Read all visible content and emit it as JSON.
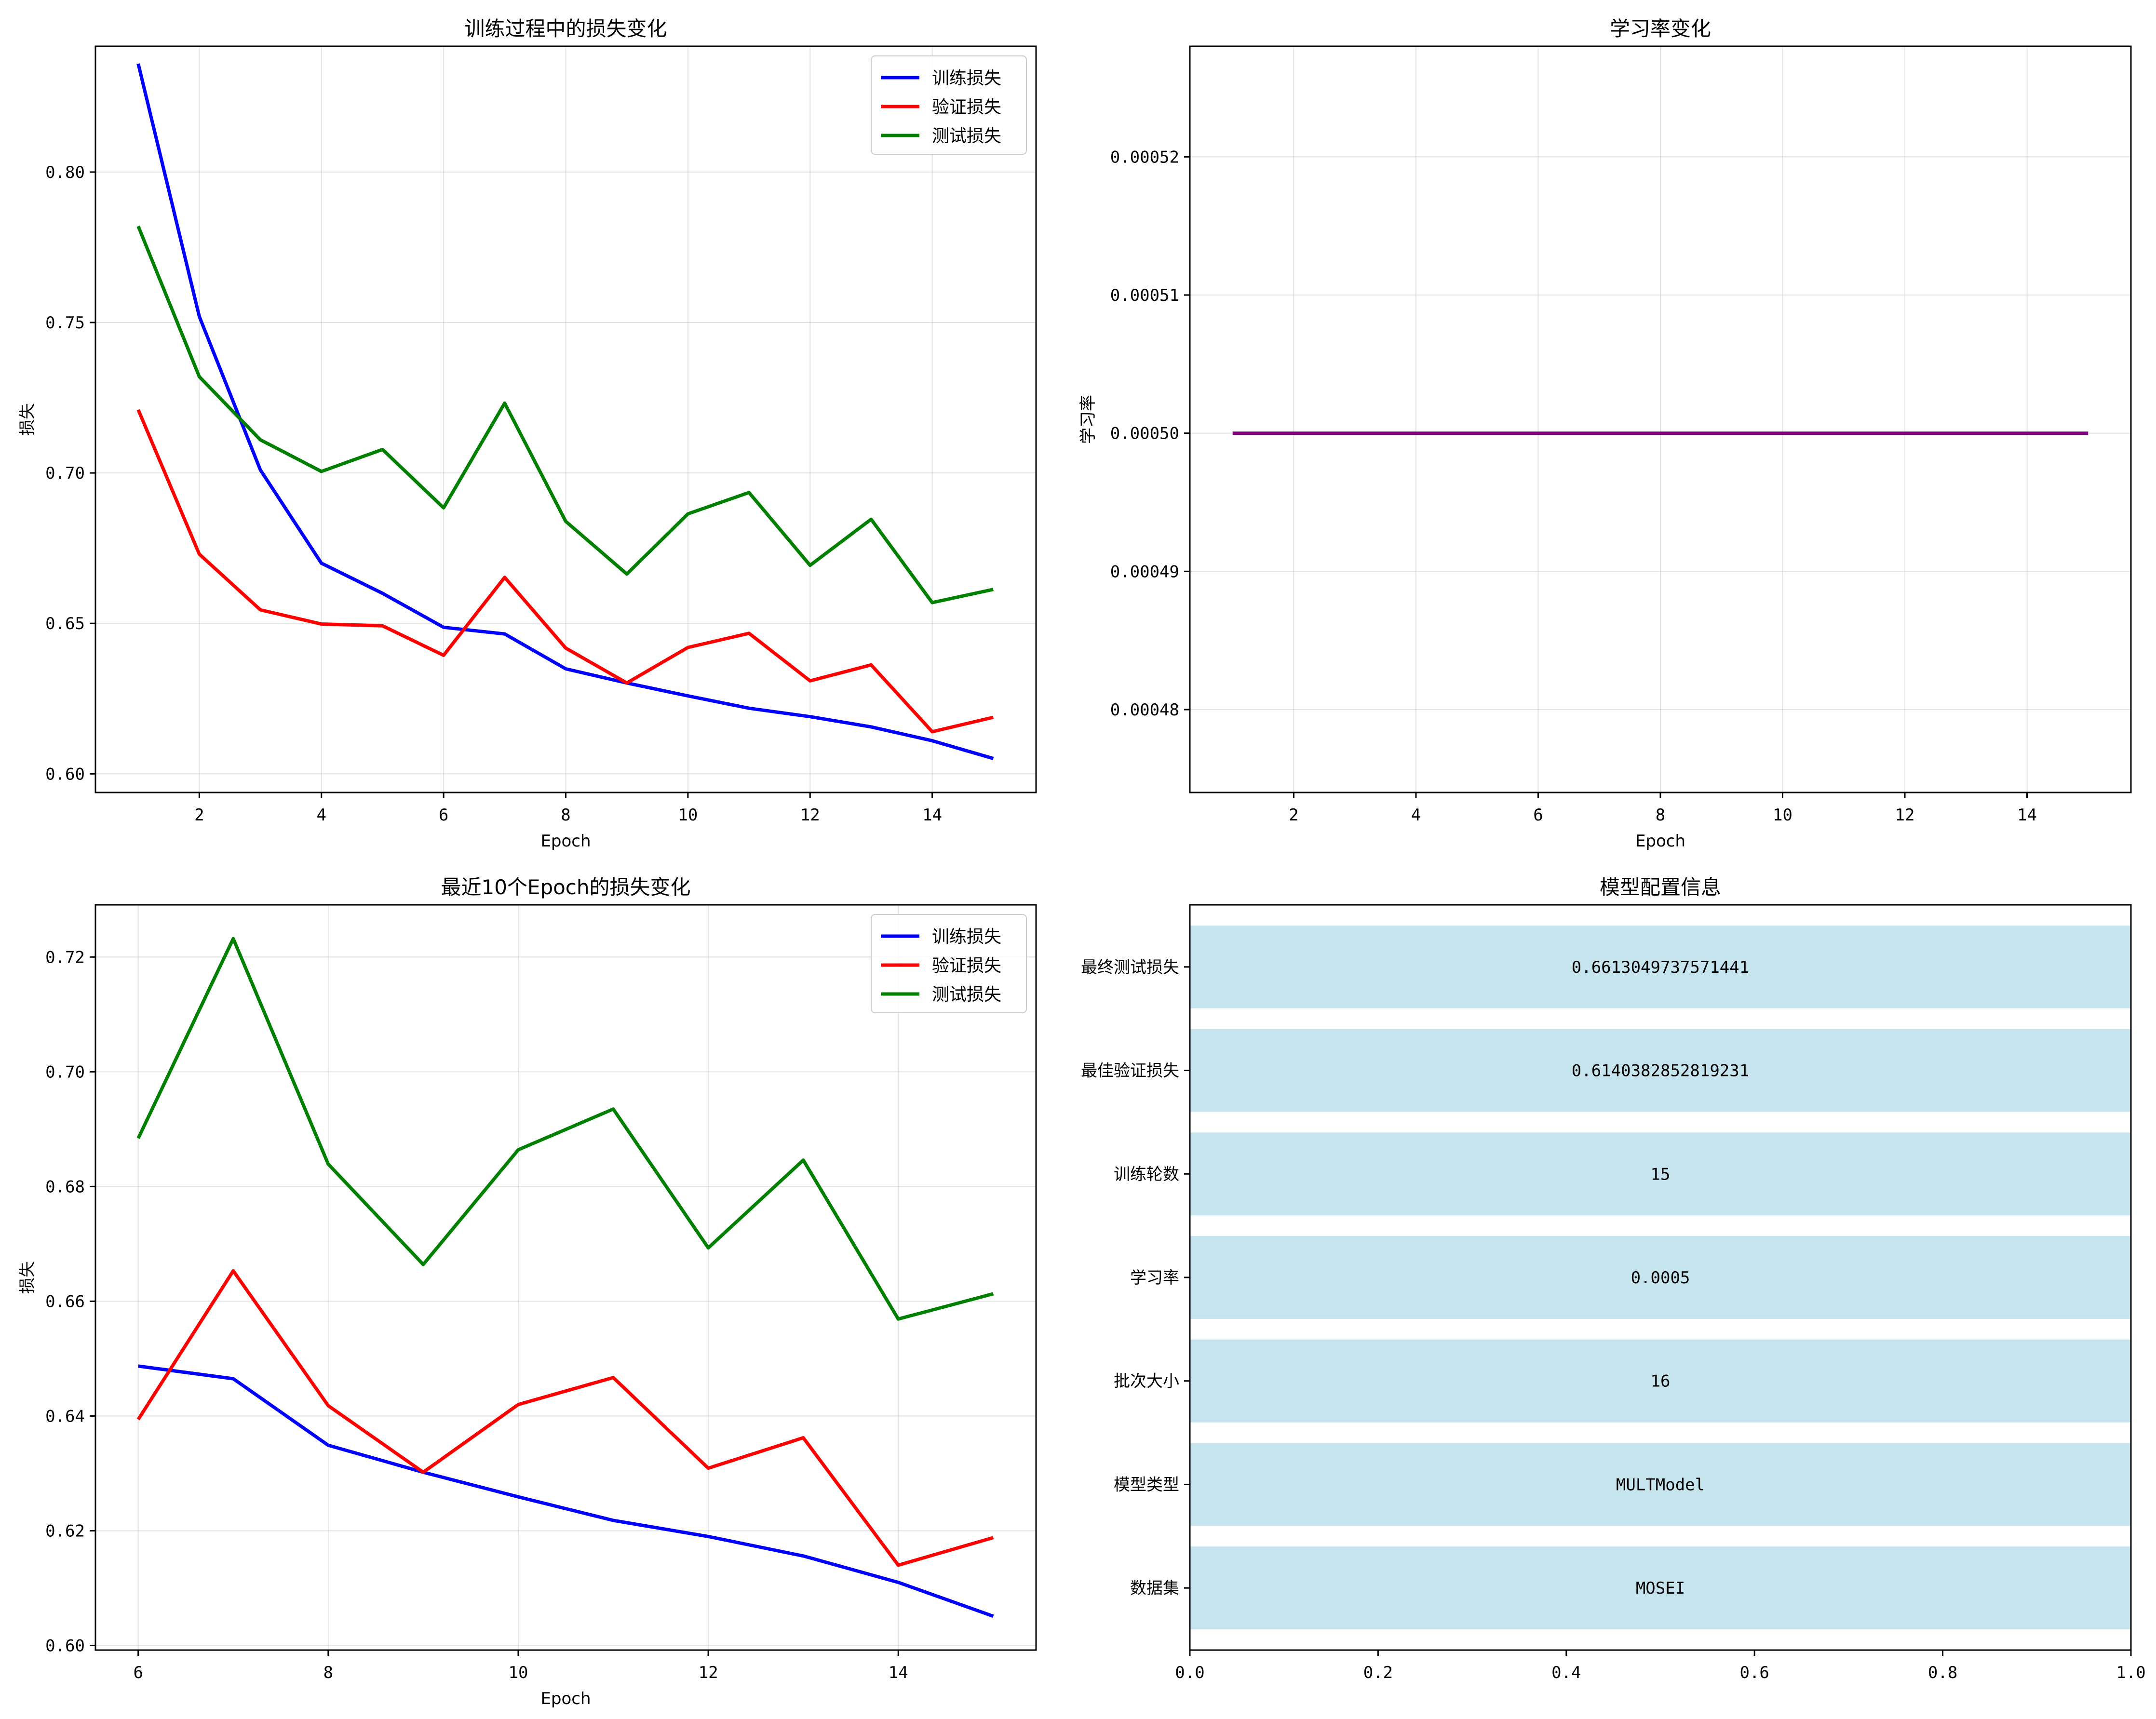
{
  "chart_data": [
    {
      "type": "line",
      "title": "训练过程中的损失变化",
      "xlabel": "Epoch",
      "ylabel": "损失",
      "xlim": [
        0.3,
        15.7
      ],
      "ylim": [
        0.5938,
        0.8418
      ],
      "xticks": [
        2,
        4,
        6,
        8,
        10,
        12,
        14
      ],
      "yticks": [
        0.6,
        0.65,
        0.7,
        0.75,
        0.8
      ],
      "grid": true,
      "legend": "top-right",
      "x": [
        1,
        2,
        3,
        4,
        5,
        6,
        7,
        8,
        9,
        10,
        11,
        12,
        13,
        14,
        15
      ],
      "series": [
        {
          "name": "训练损失",
          "color": "#0000ff",
          "values": [
            0.836,
            0.752,
            0.701,
            0.67,
            0.66,
            0.6487,
            0.6465,
            0.6349,
            0.6302,
            0.6259,
            0.6218,
            0.619,
            0.6156,
            0.611,
            0.6051
          ]
        },
        {
          "name": "验证损失",
          "color": "#ff0000",
          "values": [
            0.721,
            0.673,
            0.6545,
            0.6498,
            0.6492,
            0.6394,
            0.6653,
            0.6418,
            0.6302,
            0.642,
            0.6467,
            0.6309,
            0.6362,
            0.614,
            0.6188
          ]
        },
        {
          "name": "测试损失",
          "color": "#008000",
          "values": [
            0.782,
            0.732,
            0.711,
            0.7005,
            0.7078,
            0.6884,
            0.7232,
            0.6839,
            0.6664,
            0.6864,
            0.6935,
            0.6693,
            0.6846,
            0.6569,
            0.6613
          ]
        }
      ]
    },
    {
      "type": "line",
      "title": "学习率变化",
      "xlabel": "Epoch",
      "ylabel": "学习率",
      "xlim": [
        0.3,
        15.7
      ],
      "ylim": [
        0.000474,
        0.000528
      ],
      "xticks": [
        2,
        4,
        6,
        8,
        10,
        12,
        14
      ],
      "yticks": [
        0.00048,
        0.00049,
        0.0005,
        0.00051,
        0.00052
      ],
      "ytick_labels": [
        "0.00048",
        "0.00049",
        "0.00050",
        "0.00051",
        "0.00052"
      ],
      "grid": true,
      "x": [
        1,
        2,
        3,
        4,
        5,
        6,
        7,
        8,
        9,
        10,
        11,
        12,
        13,
        14,
        15
      ],
      "series": [
        {
          "name": "学习率",
          "color": "#800080",
          "values": [
            0.0005,
            0.0005,
            0.0005,
            0.0005,
            0.0005,
            0.0005,
            0.0005,
            0.0005,
            0.0005,
            0.0005,
            0.0005,
            0.0005,
            0.0005,
            0.0005,
            0.0005
          ]
        }
      ]
    },
    {
      "type": "line",
      "title": "最近10个Epoch的损失变化",
      "xlabel": "Epoch",
      "ylabel": "损失",
      "xlim": [
        5.55,
        15.45
      ],
      "ylim": [
        0.5992,
        0.7291
      ],
      "xticks": [
        6,
        8,
        10,
        12,
        14
      ],
      "yticks": [
        0.6,
        0.62,
        0.64,
        0.66,
        0.68,
        0.7,
        0.72
      ],
      "grid": true,
      "legend": "top-right",
      "x": [
        6,
        7,
        8,
        9,
        10,
        11,
        12,
        13,
        14,
        15
      ],
      "series": [
        {
          "name": "训练损失",
          "color": "#0000ff",
          "values": [
            0.6487,
            0.6465,
            0.6349,
            0.6302,
            0.6259,
            0.6218,
            0.619,
            0.6156,
            0.611,
            0.6051
          ]
        },
        {
          "name": "验证损失",
          "color": "#ff0000",
          "values": [
            0.6394,
            0.6653,
            0.6418,
            0.6302,
            0.642,
            0.6467,
            0.6309,
            0.6362,
            0.614,
            0.6188
          ]
        },
        {
          "name": "测试损失",
          "color": "#008000",
          "values": [
            0.6884,
            0.7232,
            0.6839,
            0.6664,
            0.6864,
            0.6935,
            0.6693,
            0.6846,
            0.6569,
            0.6613
          ]
        }
      ]
    },
    {
      "type": "bar",
      "orientation": "horizontal",
      "title": "模型配置信息",
      "xlim": [
        0,
        1
      ],
      "xticks": [
        0.0,
        0.2,
        0.4,
        0.6,
        0.8,
        1.0
      ],
      "xtick_labels": [
        "0.0",
        "0.2",
        "0.4",
        "0.6",
        "0.8",
        "1.0"
      ],
      "bar_color": "#add8e6",
      "categories": [
        "最终测试损失",
        "最佳验证损失",
        "训练轮数",
        "学习率",
        "批次大小",
        "模型类型",
        "数据集"
      ],
      "values": [
        1,
        1,
        1,
        1,
        1,
        1,
        1
      ],
      "labels": [
        "0.6613049737571441",
        "0.6140382852819231",
        "15",
        "0.0005",
        "16",
        "MULTModel",
        "MOSEI"
      ]
    }
  ]
}
